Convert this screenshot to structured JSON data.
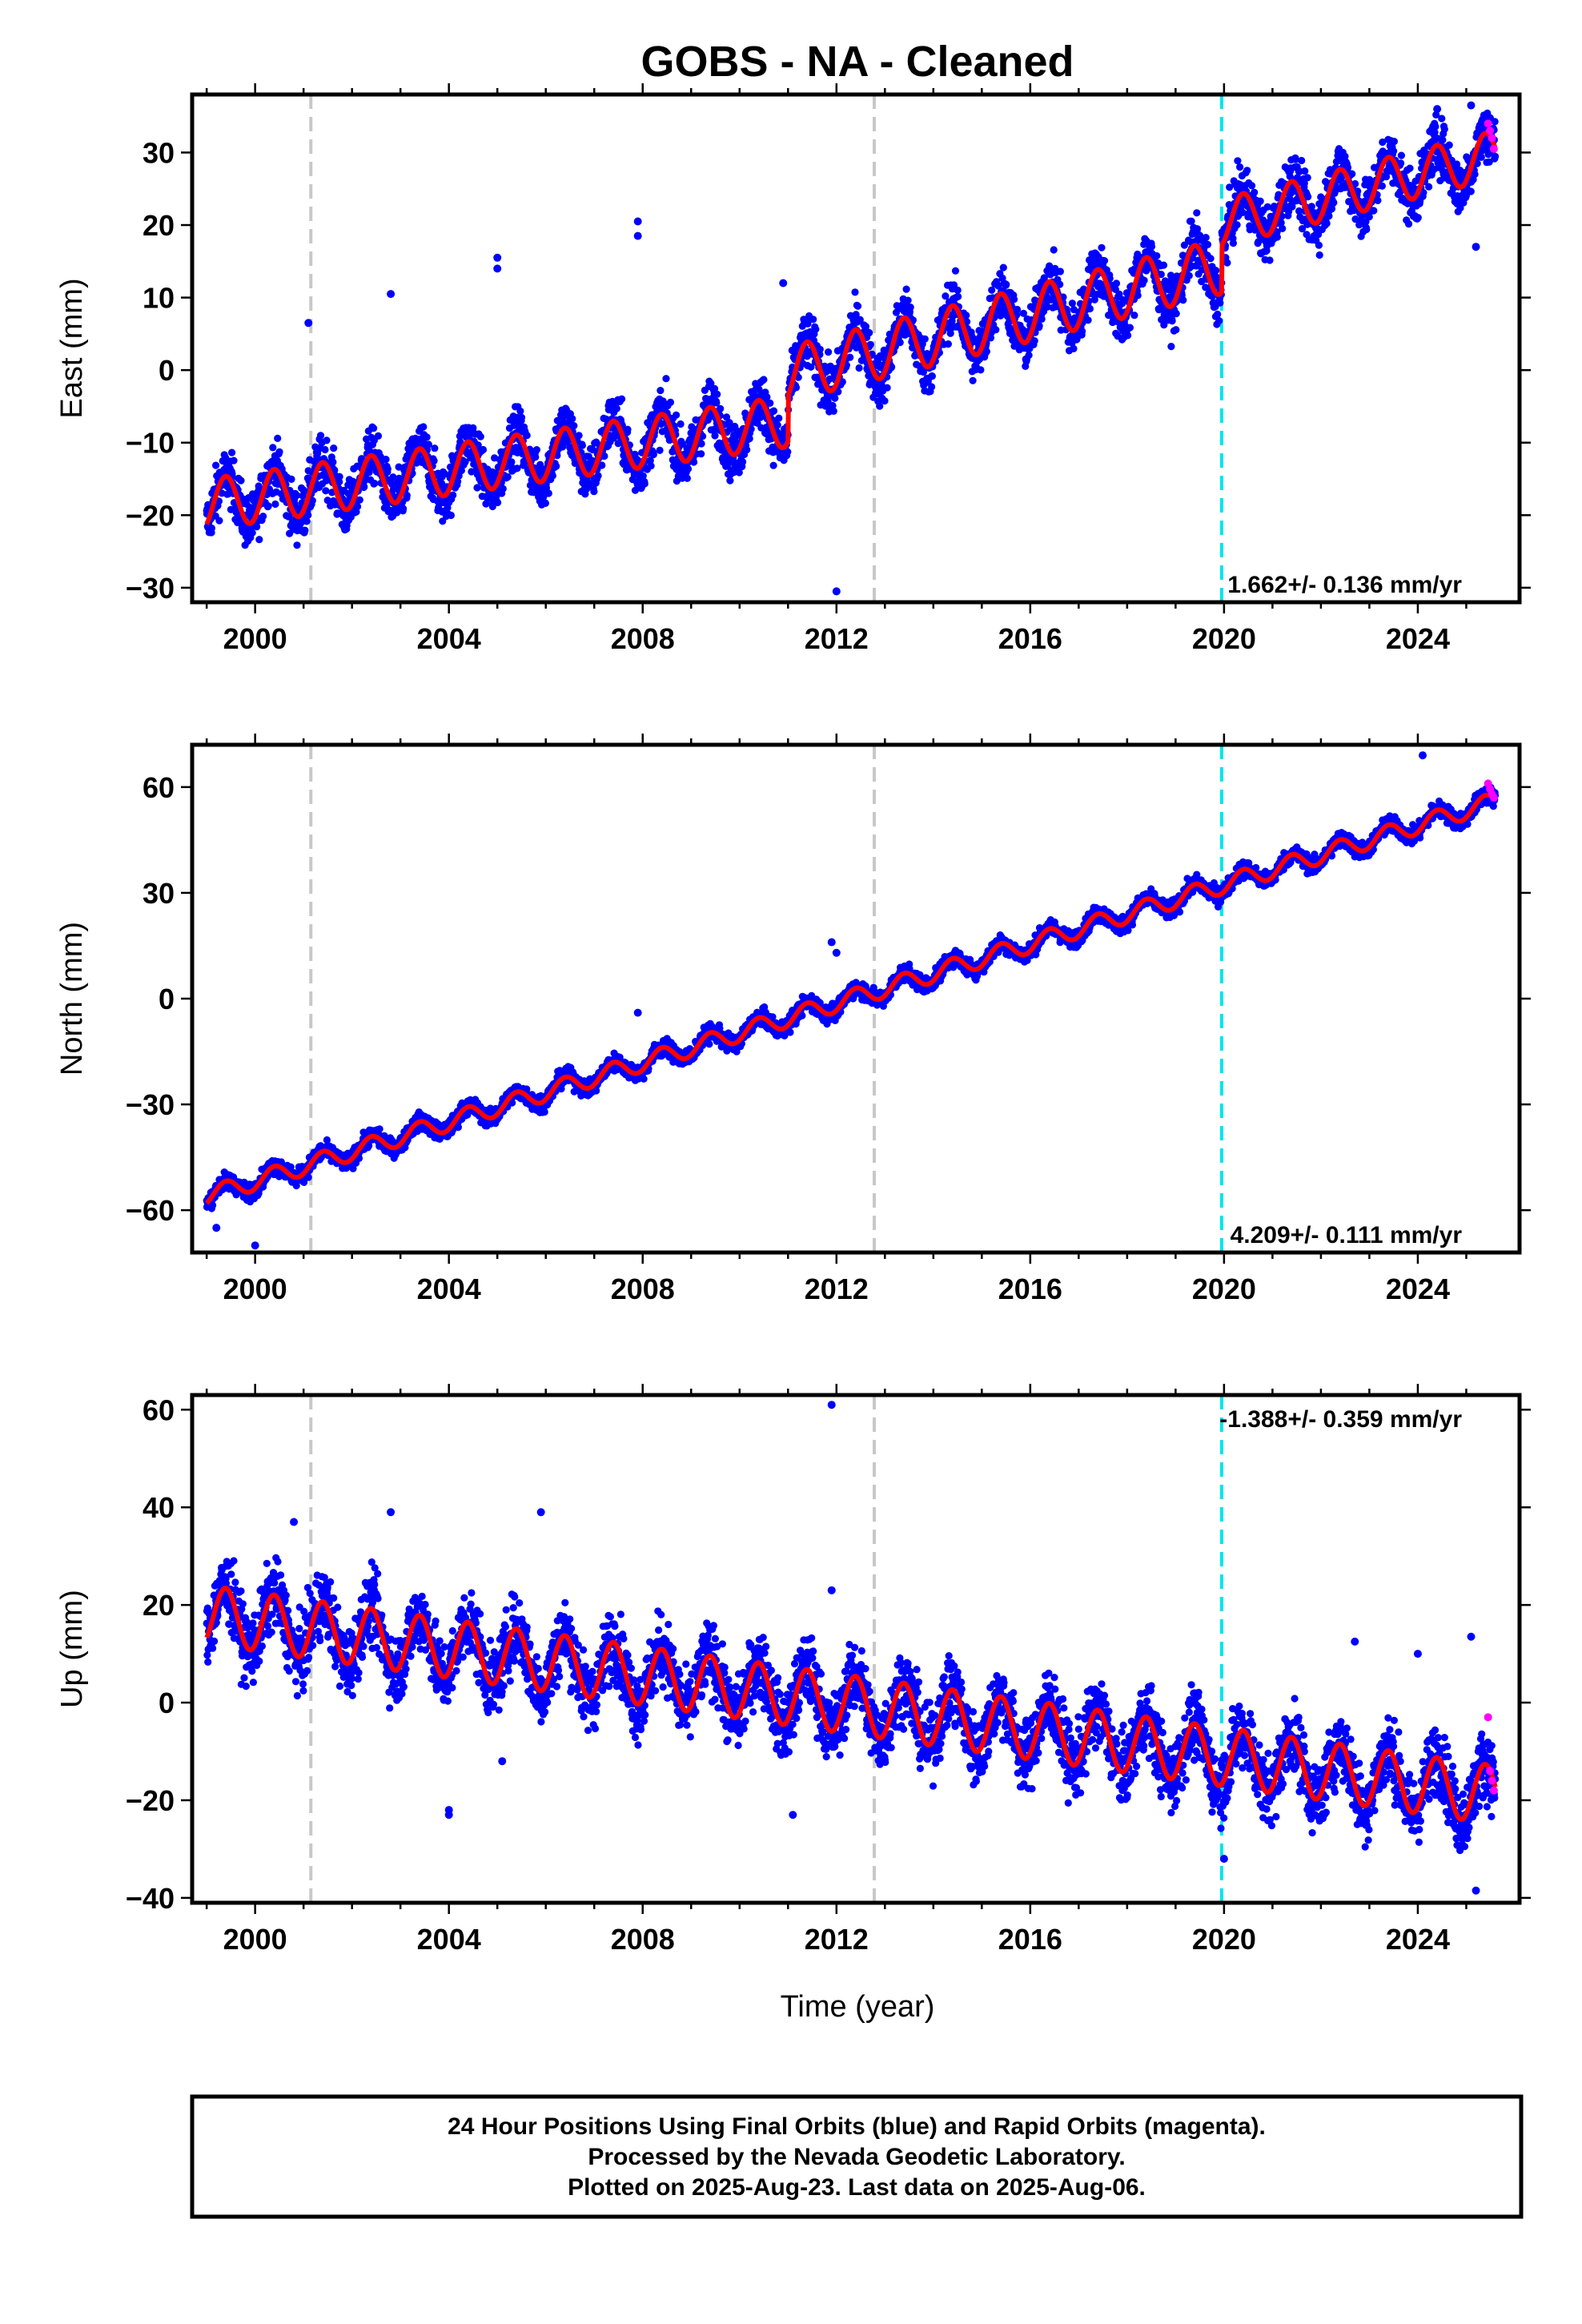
{
  "chart_data": {
    "type": "scatter",
    "title": "GOBS  - NA - Cleaned",
    "xlabel": "Time (year)",
    "xlim": [
      1998.7,
      2026.1
    ],
    "xticks": [
      2000,
      2004,
      2008,
      2012,
      2016,
      2020,
      2024
    ],
    "vertical_markers": [
      {
        "x": 2001.15,
        "color": "#c8c8c8"
      },
      {
        "x": 2012.78,
        "color": "#c8c8c8"
      },
      {
        "x": 2019.95,
        "color": "#00e5ee"
      }
    ],
    "colors": {
      "final_orbits": "#0000ff",
      "rapid_orbits": "#ff00ff",
      "model": "#ff0000"
    },
    "x_start": 1999.0,
    "x_end": 2025.6,
    "rapid_x_start": 2025.45,
    "panels": [
      {
        "name": "East",
        "ylabel": "East (mm)",
        "ylim": [
          -32,
          38
        ],
        "yticks": [
          -30,
          -20,
          -10,
          0,
          10,
          20,
          30
        ],
        "rate_label": "1.662+/- 0.136 mm/yr",
        "rate_position": "bottom-right",
        "model_segments": [
          {
            "from": 1999.0,
            "to": 2011.0,
            "y0": -18.5,
            "slope": 0.95,
            "amp": 3.5
          },
          {
            "from": 2011.0,
            "to": 2019.95,
            "y0": -20.5,
            "slope": 1.662,
            "amp": 3.8
          },
          {
            "from": 2019.95,
            "to": 2025.6,
            "y0": -14.5,
            "slope": 1.662,
            "amp": 3.3
          }
        ],
        "scatter": 2.6,
        "outliers": [
          [
            2001.1,
            6.5
          ],
          [
            2002.8,
            10.5
          ],
          [
            2005.0,
            15.5
          ],
          [
            2005.0,
            14.0
          ],
          [
            2007.9,
            20.5
          ],
          [
            2007.9,
            18.5
          ],
          [
            2010.9,
            12.0
          ],
          [
            2012.0,
            -30.5
          ],
          [
            2024.4,
            36.0
          ],
          [
            2025.1,
            36.5
          ],
          [
            2025.2,
            17.0
          ]
        ],
        "rapid_y": [
          34.0,
          33.0,
          32.0,
          30.5
        ]
      },
      {
        "name": "North",
        "ylabel": "North (mm)",
        "ylim": [
          -72,
          72
        ],
        "yticks": [
          -60,
          -30,
          0,
          30,
          60
        ],
        "rate_label": "4.209+/- 0.111 mm/yr",
        "rate_position": "bottom-right",
        "model_segments": [
          {
            "from": 1999.0,
            "to": 2025.6,
            "y0": -56.0,
            "slope": 4.209,
            "amp": 2.6
          }
        ],
        "scatter": 1.7,
        "outliers": [
          [
            1999.2,
            -65.0
          ],
          [
            2000.0,
            -70.0
          ],
          [
            2007.9,
            -4.0
          ],
          [
            2011.9,
            16.0
          ],
          [
            2012.0,
            13.0
          ],
          [
            2024.1,
            69.0
          ]
        ],
        "rapid_y": [
          61.0,
          59.5,
          58.0,
          57.0
        ]
      },
      {
        "name": "Up",
        "ylabel": "Up (mm)",
        "ylim": [
          -41,
          63
        ],
        "yticks": [
          -40,
          -20,
          0,
          20,
          40,
          60
        ],
        "rate_label": "-1.388+/- 0.359 mm/yr",
        "rate_position": "top-right",
        "model_segments": [
          {
            "from": 1999.0,
            "to": 2025.6,
            "y0": 18.0,
            "slope": -1.388,
            "amp": 6.0
          }
        ],
        "scatter": 5.0,
        "outliers": [
          [
            2000.8,
            37.0
          ],
          [
            2002.8,
            39.0
          ],
          [
            2004.0,
            -22.0
          ],
          [
            2004.0,
            -23.0
          ],
          [
            2005.1,
            -12.0
          ],
          [
            2005.9,
            39.0
          ],
          [
            2011.9,
            61.0
          ],
          [
            2011.9,
            23.0
          ],
          [
            2011.1,
            -23.0
          ],
          [
            2020.0,
            -32.0
          ],
          [
            2022.7,
            12.5
          ],
          [
            2024.0,
            10.0
          ],
          [
            2025.1,
            13.5
          ],
          [
            2025.2,
            -38.5
          ]
        ],
        "rapid_y": [
          -3.0,
          -14.0,
          -16.0,
          -18.0
        ]
      }
    ]
  },
  "footer": {
    "line1": "24 Hour Positions Using Final Orbits (blue) and Rapid Orbits (magenta).",
    "line2": "Processed by the Nevada Geodetic Laboratory.",
    "line3": "Plotted on 2025-Aug-23. Last data on 2025-Aug-06."
  }
}
